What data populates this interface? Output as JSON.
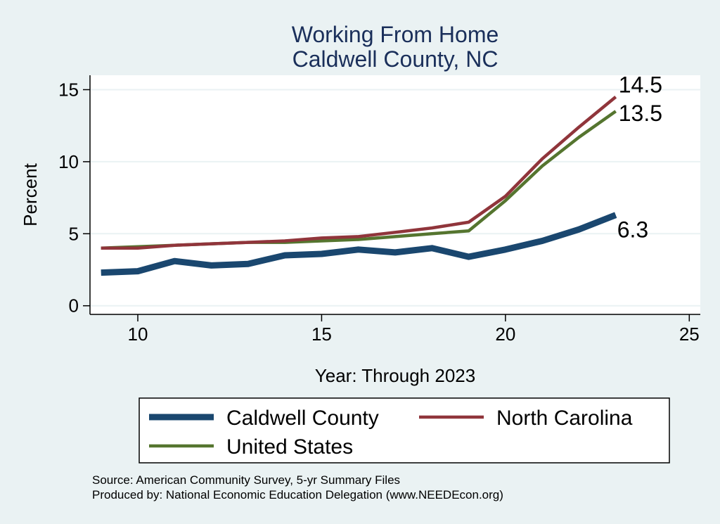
{
  "chart_data": {
    "type": "line",
    "title": [
      "Working From Home",
      "Caldwell County, NC"
    ],
    "xlabel": "Year: Through 2023",
    "ylabel": "Percent",
    "xlim": [
      8.7,
      25.3
    ],
    "ylim": [
      -0.6,
      16
    ],
    "xticks": [
      10,
      15,
      20,
      25
    ],
    "yticks": [
      0,
      5,
      10,
      15
    ],
    "grid": true,
    "legend_position": "bottom",
    "series": [
      {
        "name": "Caldwell County",
        "color": "#1a476f",
        "x": [
          9,
          10,
          11,
          12,
          13,
          14,
          15,
          16,
          17,
          18,
          19,
          20,
          21,
          22,
          23
        ],
        "y": [
          2.3,
          2.4,
          3.1,
          2.8,
          2.9,
          3.5,
          3.6,
          3.9,
          3.7,
          4.0,
          3.4,
          3.9,
          4.5,
          5.3,
          6.3
        ],
        "end_label": "6.3"
      },
      {
        "name": "North Carolina",
        "color": "#90353b",
        "x": [
          9,
          10,
          11,
          12,
          13,
          14,
          15,
          16,
          17,
          18,
          19,
          20,
          21,
          22,
          23
        ],
        "y": [
          4.0,
          4.0,
          4.2,
          4.3,
          4.4,
          4.5,
          4.7,
          4.8,
          5.1,
          5.4,
          5.8,
          7.6,
          10.2,
          12.4,
          14.5
        ],
        "end_label": "14.5"
      },
      {
        "name": "United States",
        "color": "#55752f",
        "x": [
          9,
          10,
          11,
          12,
          13,
          14,
          15,
          16,
          17,
          18,
          19,
          20,
          21,
          22,
          23
        ],
        "y": [
          4.0,
          4.1,
          4.2,
          4.3,
          4.4,
          4.4,
          4.5,
          4.6,
          4.8,
          5.0,
          5.2,
          7.3,
          9.7,
          11.7,
          13.5
        ],
        "end_label": "13.5"
      }
    ]
  },
  "footer": {
    "source": "Source: American Community Survey, 5-yr Summary Files",
    "produced": "Produced by: National Economic Education Delegation (www.NEEDEcon.org)"
  }
}
